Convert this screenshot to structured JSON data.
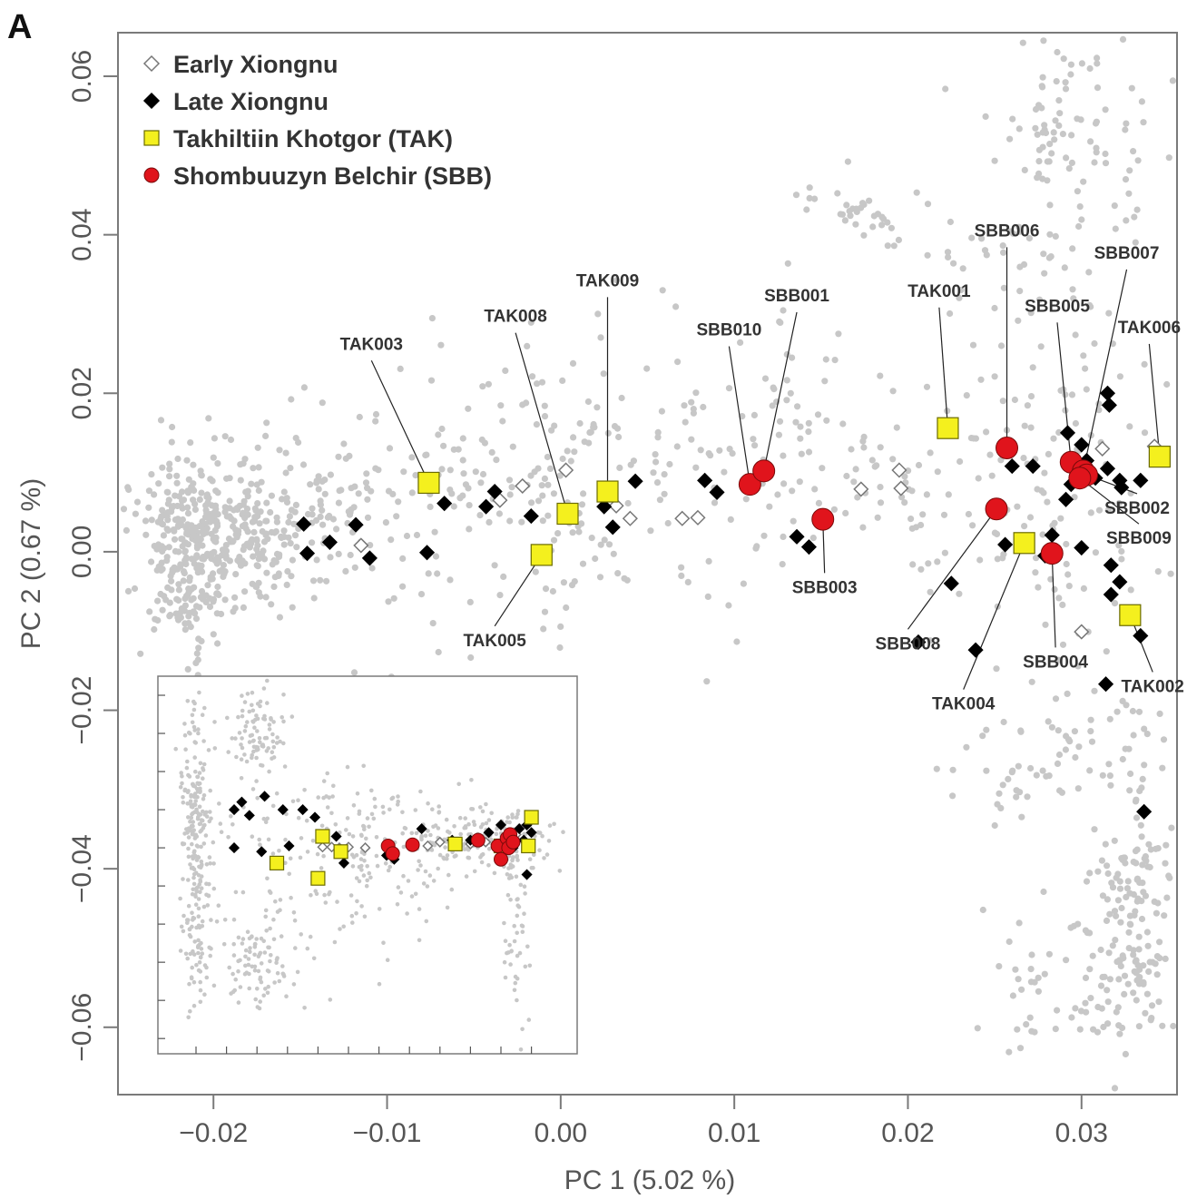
{
  "panel_label": "A",
  "chart_data": {
    "type": "scatter",
    "xlabel": "PC 1 (5.02 %)",
    "ylabel": "PC 2 (0.67 %)",
    "xlim": [
      -0.0255,
      0.0355
    ],
    "ylim": [
      -0.0685,
      0.0655
    ],
    "x_ticks": [
      -0.02,
      -0.01,
      0.0,
      0.01,
      0.02,
      0.03
    ],
    "x_tick_labels": [
      "−0.02",
      "−0.01",
      "0.00",
      "0.01",
      "0.02",
      "0.03"
    ],
    "y_ticks": [
      -0.06,
      -0.04,
      -0.02,
      0.0,
      0.02,
      0.04,
      0.06
    ],
    "y_tick_labels": [
      "−0.06",
      "−0.04",
      "−0.02",
      "0.00",
      "0.02",
      "0.04",
      "0.06"
    ],
    "grid": false,
    "legend_position": "top-left",
    "legend": [
      {
        "label": "Early Xiongnu",
        "marker": "diamond-open",
        "color": "#888888"
      },
      {
        "label": "Late Xiongnu",
        "marker": "diamond",
        "color": "#000000"
      },
      {
        "label": "Takhiltiin Khotgor (TAK)",
        "marker": "square",
        "color": "#f4f01e"
      },
      {
        "label": "Shombuuzyn Belchir (SBB)",
        "marker": "circle",
        "color": "#e0141c"
      }
    ],
    "reference_color": "#c7c7c7",
    "reference_clusters": [
      {
        "cx": -0.0215,
        "cy": 0.0,
        "sx": 0.0014,
        "sy": 0.006,
        "n": 260
      },
      {
        "cx": -0.0195,
        "cy": 0.004,
        "sx": 0.0025,
        "sy": 0.002,
        "n": 110
      },
      {
        "cx": -0.0175,
        "cy": -0.001,
        "sx": 0.002,
        "sy": 0.003,
        "n": 90
      },
      {
        "cx": -0.015,
        "cy": 0.008,
        "sx": 0.003,
        "sy": 0.004,
        "n": 70
      },
      {
        "cx": -0.008,
        "cy": 0.006,
        "sx": 0.006,
        "sy": 0.008,
        "n": 110
      },
      {
        "cx": 0.001,
        "cy": 0.006,
        "sx": 0.006,
        "sy": 0.009,
        "n": 110
      },
      {
        "cx": 0.012,
        "cy": 0.011,
        "sx": 0.004,
        "sy": 0.007,
        "n": 70
      },
      {
        "cx": 0.004,
        "cy": 0.02,
        "sx": 0.006,
        "sy": 0.008,
        "n": 45
      },
      {
        "cx": 0.017,
        "cy": 0.043,
        "sx": 0.002,
        "sy": 0.002,
        "n": 35
      },
      {
        "cx": 0.02,
        "cy": 0.008,
        "sx": 0.004,
        "sy": 0.007,
        "n": 50
      },
      {
        "cx": 0.0285,
        "cy": 0.008,
        "sx": 0.003,
        "sy": 0.012,
        "n": 110
      },
      {
        "cx": 0.03,
        "cy": 0.052,
        "sx": 0.0025,
        "sy": 0.006,
        "n": 90
      },
      {
        "cx": 0.027,
        "cy": 0.035,
        "sx": 0.003,
        "sy": 0.006,
        "n": 45
      },
      {
        "cx": 0.03,
        "cy": -0.023,
        "sx": 0.003,
        "sy": 0.004,
        "n": 40
      },
      {
        "cx": 0.033,
        "cy": -0.045,
        "sx": 0.0011,
        "sy": 0.01,
        "n": 150
      },
      {
        "cx": 0.029,
        "cy": -0.055,
        "sx": 0.003,
        "sy": 0.005,
        "n": 60
      },
      {
        "cx": 0.027,
        "cy": -0.03,
        "sx": 0.003,
        "sy": 0.003,
        "n": 25
      }
    ],
    "series": [
      {
        "name": "Early Xiongnu",
        "points": [
          {
            "x": -0.0115,
            "y": 0.0008
          },
          {
            "x": -0.0035,
            "y": 0.0065
          },
          {
            "x": -0.0022,
            "y": 0.0083
          },
          {
            "x": 0.0003,
            "y": 0.0103
          },
          {
            "x": 0.0032,
            "y": 0.0058
          },
          {
            "x": 0.004,
            "y": 0.0042
          },
          {
            "x": 0.007,
            "y": 0.0042
          },
          {
            "x": 0.0079,
            "y": 0.0043
          },
          {
            "x": 0.0173,
            "y": 0.0079
          },
          {
            "x": 0.0195,
            "y": 0.0103
          },
          {
            "x": 0.0196,
            "y": 0.008
          },
          {
            "x": 0.0312,
            "y": 0.013
          },
          {
            "x": 0.03,
            "y": -0.0101
          },
          {
            "x": 0.0342,
            "y": 0.0133
          }
        ]
      },
      {
        "name": "Late Xiongnu",
        "points": [
          {
            "x": -0.0148,
            "y": 0.0035
          },
          {
            "x": -0.0146,
            "y": -0.0002
          },
          {
            "x": -0.0133,
            "y": 0.0012
          },
          {
            "x": -0.0118,
            "y": 0.0034
          },
          {
            "x": -0.011,
            "y": -0.0008
          },
          {
            "x": -0.0077,
            "y": -0.0001
          },
          {
            "x": -0.0067,
            "y": 0.0061
          },
          {
            "x": -0.0043,
            "y": 0.0057
          },
          {
            "x": -0.0038,
            "y": 0.0076
          },
          {
            "x": -0.0017,
            "y": 0.0045
          },
          {
            "x": 0.0025,
            "y": 0.0057
          },
          {
            "x": 0.0028,
            "y": 0.0076
          },
          {
            "x": 0.003,
            "y": 0.0031
          },
          {
            "x": 0.0043,
            "y": 0.0089
          },
          {
            "x": 0.0083,
            "y": 0.009
          },
          {
            "x": 0.009,
            "y": 0.0075
          },
          {
            "x": 0.0136,
            "y": 0.0019
          },
          {
            "x": 0.0143,
            "y": 0.0006
          },
          {
            "x": 0.0206,
            "y": -0.0114
          },
          {
            "x": 0.0225,
            "y": -0.004
          },
          {
            "x": 0.0239,
            "y": -0.0124
          },
          {
            "x": 0.0256,
            "y": 0.0009
          },
          {
            "x": 0.026,
            "y": 0.0108
          },
          {
            "x": 0.0272,
            "y": 0.0108
          },
          {
            "x": 0.0279,
            "y": -0.0005
          },
          {
            "x": 0.0283,
            "y": 0.0021
          },
          {
            "x": 0.0292,
            "y": 0.015
          },
          {
            "x": 0.0291,
            "y": 0.0066
          },
          {
            "x": 0.0294,
            "y": 0.0085
          },
          {
            "x": 0.03,
            "y": 0.0135
          },
          {
            "x": 0.03,
            "y": 0.0005
          },
          {
            "x": 0.0303,
            "y": 0.0115
          },
          {
            "x": 0.0308,
            "y": 0.0093
          },
          {
            "x": 0.0314,
            "y": -0.0167
          },
          {
            "x": 0.0315,
            "y": 0.0105
          },
          {
            "x": 0.0315,
            "y": 0.02
          },
          {
            "x": 0.0316,
            "y": 0.0185
          },
          {
            "x": 0.0317,
            "y": -0.0054
          },
          {
            "x": 0.0317,
            "y": -0.0017
          },
          {
            "x": 0.0322,
            "y": 0.009
          },
          {
            "x": 0.0323,
            "y": 0.0081
          },
          {
            "x": 0.0322,
            "y": -0.0038
          },
          {
            "x": 0.0334,
            "y": -0.0106
          },
          {
            "x": 0.0334,
            "y": 0.009
          },
          {
            "x": 0.0336,
            "y": -0.0328
          }
        ]
      },
      {
        "name": "Takhiltiin Khotgor (TAK)",
        "points": [
          {
            "id": "TAK003",
            "x": -0.0076,
            "y": 0.0087
          },
          {
            "id": "TAK005",
            "x": -0.0011,
            "y": -0.0004
          },
          {
            "id": "TAK008",
            "x": 0.0004,
            "y": 0.0048
          },
          {
            "id": "TAK009",
            "x": 0.0027,
            "y": 0.0076
          },
          {
            "id": "TAK001",
            "x": 0.0223,
            "y": 0.0156
          },
          {
            "id": "TAK004",
            "x": 0.0267,
            "y": 0.0011
          },
          {
            "id": "TAK002",
            "x": 0.0328,
            "y": -0.008
          },
          {
            "id": "TAK006",
            "x": 0.0345,
            "y": 0.012
          }
        ]
      },
      {
        "name": "Shombuuzyn Belchir (SBB)",
        "points": [
          {
            "id": "SBB010",
            "x": 0.0109,
            "y": 0.0085
          },
          {
            "id": "SBB001",
            "x": 0.0117,
            "y": 0.0102
          },
          {
            "id": "SBB003",
            "x": 0.0151,
            "y": 0.0041
          },
          {
            "id": "SBB008",
            "x": 0.0251,
            "y": 0.0054
          },
          {
            "id": "SBB006",
            "x": 0.0257,
            "y": 0.0131
          },
          {
            "id": "SBB004",
            "x": 0.0283,
            "y": -0.0002
          },
          {
            "id": "SBB005",
            "x": 0.0294,
            "y": 0.0113
          },
          {
            "id": "SBB007",
            "x": 0.0301,
            "y": 0.0102
          },
          {
            "id": "SBB002",
            "x": 0.0303,
            "y": 0.0097
          },
          {
            "id": "SBB009",
            "x": 0.0299,
            "y": 0.0093
          }
        ]
      }
    ],
    "annotations": [
      {
        "text": "TAK003",
        "target": "TAK003",
        "lx": -0.0109,
        "ly": 0.0255
      },
      {
        "text": "TAK005",
        "target": "TAK005",
        "lx": -0.0038,
        "ly": -0.0119
      },
      {
        "text": "TAK008",
        "target": "TAK008",
        "lx": -0.0026,
        "ly": 0.029
      },
      {
        "text": "TAK009",
        "target": "TAK009",
        "lx": 0.0027,
        "ly": 0.0335
      },
      {
        "text": "SBB010",
        "target": "SBB010",
        "lx": 0.0097,
        "ly": 0.0273
      },
      {
        "text": "SBB001",
        "target": "SBB001",
        "lx": 0.0136,
        "ly": 0.0316
      },
      {
        "text": "TAK001",
        "target": "TAK001",
        "lx": 0.0218,
        "ly": 0.0322
      },
      {
        "text": "SBB003",
        "target": "SBB003",
        "lx": 0.0152,
        "ly": -0.0052
      },
      {
        "text": "SBB006",
        "target": "SBB006",
        "lx": 0.0257,
        "ly": 0.0398
      },
      {
        "text": "SBB007",
        "target": "SBB007",
        "lx": 0.0326,
        "ly": 0.037
      },
      {
        "text": "SBB005",
        "target": "SBB005",
        "lx": 0.0286,
        "ly": 0.0303
      },
      {
        "text": "TAK006",
        "target": "TAK006",
        "lx": 0.0339,
        "ly": 0.0276
      },
      {
        "text": "SBB002",
        "target": "SBB002",
        "lx": 0.0332,
        "ly": 0.0048
      },
      {
        "text": "SBB009",
        "target": "SBB009",
        "lx": 0.0333,
        "ly": 0.001
      },
      {
        "text": "SBB008",
        "target": "SBB008",
        "lx": 0.02,
        "ly": -0.0123
      },
      {
        "text": "SBB004",
        "target": "SBB004",
        "lx": 0.0285,
        "ly": -0.0146
      },
      {
        "text": "TAK004",
        "target": "TAK004",
        "lx": 0.0232,
        "ly": -0.0199
      },
      {
        "text": "TAK002",
        "target": "TAK002",
        "lx": 0.0341,
        "ly": -0.0177
      }
    ],
    "inset": {
      "xlim": [
        -0.0245,
        0.003
      ],
      "ylim": [
        -0.054,
        0.045
      ],
      "x_ticks": [
        -0.022,
        -0.02,
        -0.018,
        -0.016,
        -0.014,
        -0.012,
        -0.01,
        -0.008,
        -0.006,
        -0.004,
        -0.002,
        0.0
      ],
      "y_ticks": [
        -0.05,
        -0.04,
        -0.03,
        -0.02,
        -0.01,
        0.0,
        0.01,
        0.02,
        0.03,
        0.04
      ],
      "reference_clusters": [
        {
          "cx": -0.022,
          "cy": 0.0,
          "sx": 0.0005,
          "sy": 0.02,
          "n": 260
        },
        {
          "cx": -0.018,
          "cy": 0.03,
          "sx": 0.001,
          "sy": 0.006,
          "n": 90
        },
        {
          "cx": -0.018,
          "cy": -0.03,
          "sx": 0.0012,
          "sy": 0.006,
          "n": 90
        },
        {
          "cx": -0.013,
          "cy": 0.006,
          "sx": 0.004,
          "sy": 0.008,
          "n": 90
        },
        {
          "cx": -0.012,
          "cy": -0.012,
          "sx": 0.004,
          "sy": 0.009,
          "n": 90
        },
        {
          "cx": -0.006,
          "cy": 0.001,
          "sx": 0.003,
          "sy": 0.005,
          "n": 90
        },
        {
          "cx": -0.002,
          "cy": 0.002,
          "sx": 0.002,
          "sy": 0.004,
          "n": 110
        },
        {
          "cx": -0.001,
          "cy": -0.02,
          "sx": 0.0005,
          "sy": 0.012,
          "n": 60
        }
      ],
      "early_xiongnu": [
        {
          "x": -0.0137,
          "y": 0.0002
        },
        {
          "x": -0.0131,
          "y": 0.0002
        },
        {
          "x": -0.0126,
          "y": 0.0
        },
        {
          "x": -0.012,
          "y": 0.0002
        },
        {
          "x": -0.0109,
          "y": 0.0
        },
        {
          "x": -0.0068,
          "y": 0.0005
        },
        {
          "x": -0.006,
          "y": 0.0015
        },
        {
          "x": -0.004,
          "y": 0.001
        },
        {
          "x": -0.003,
          "y": 0.0015
        },
        {
          "x": -0.001,
          "y": 0.0035
        }
      ],
      "late_xiongnu": [
        {
          "x": -0.0195,
          "y": 0.01
        },
        {
          "x": -0.019,
          "y": 0.012
        },
        {
          "x": -0.0185,
          "y": 0.0085
        },
        {
          "x": -0.0175,
          "y": 0.0135
        },
        {
          "x": -0.0163,
          "y": 0.01
        },
        {
          "x": -0.015,
          "y": 0.01
        },
        {
          "x": -0.0142,
          "y": 0.008
        },
        {
          "x": -0.0128,
          "y": 0.003
        },
        {
          "x": -0.0195,
          "y": 0.0
        },
        {
          "x": -0.0177,
          "y": -0.001
        },
        {
          "x": -0.0159,
          "y": 0.0005
        },
        {
          "x": -0.0123,
          "y": -0.004
        },
        {
          "x": -0.009,
          "y": -0.003
        },
        {
          "x": -0.0095,
          "y": -0.002
        },
        {
          "x": -0.0072,
          "y": 0.005
        },
        {
          "x": -0.0052,
          "y": 0.002
        },
        {
          "x": -0.004,
          "y": 0.002
        },
        {
          "x": -0.0028,
          "y": 0.004
        },
        {
          "x": -0.002,
          "y": 0.006
        },
        {
          "x": -0.0015,
          "y": 0.003
        },
        {
          "x": -0.0012,
          "y": 0.0
        },
        {
          "x": -0.0008,
          "y": 0.005
        },
        {
          "x": -0.0005,
          "y": 0.002
        },
        {
          "x": -0.0003,
          "y": 0.006
        },
        {
          "x": -0.0003,
          "y": -0.007
        },
        {
          "x": 0.0,
          "y": 0.004
        }
      ],
      "tak": [
        {
          "x": -0.0167,
          "y": -0.004
        },
        {
          "x": -0.0137,
          "y": 0.003
        },
        {
          "x": -0.014,
          "y": -0.008
        },
        {
          "x": -0.0125,
          "y": -0.001
        },
        {
          "x": -0.005,
          "y": 0.001
        },
        {
          "x": -0.0002,
          "y": 0.0005
        },
        {
          "x": 0.0,
          "y": 0.008
        },
        {
          "x": -0.002,
          "y": 0.0005
        }
      ],
      "sbb": [
        {
          "x": -0.0094,
          "y": 0.0005
        },
        {
          "x": -0.0091,
          "y": -0.0015
        },
        {
          "x": -0.0078,
          "y": 0.0008
        },
        {
          "x": -0.0035,
          "y": 0.002
        },
        {
          "x": -0.0022,
          "y": 0.0005
        },
        {
          "x": -0.002,
          "y": -0.003
        },
        {
          "x": -0.0016,
          "y": 0.0025
        },
        {
          "x": -0.0014,
          "y": 0.0035
        },
        {
          "x": -0.0015,
          "y": 0.0
        },
        {
          "x": -0.0012,
          "y": 0.0015
        }
      ]
    }
  }
}
